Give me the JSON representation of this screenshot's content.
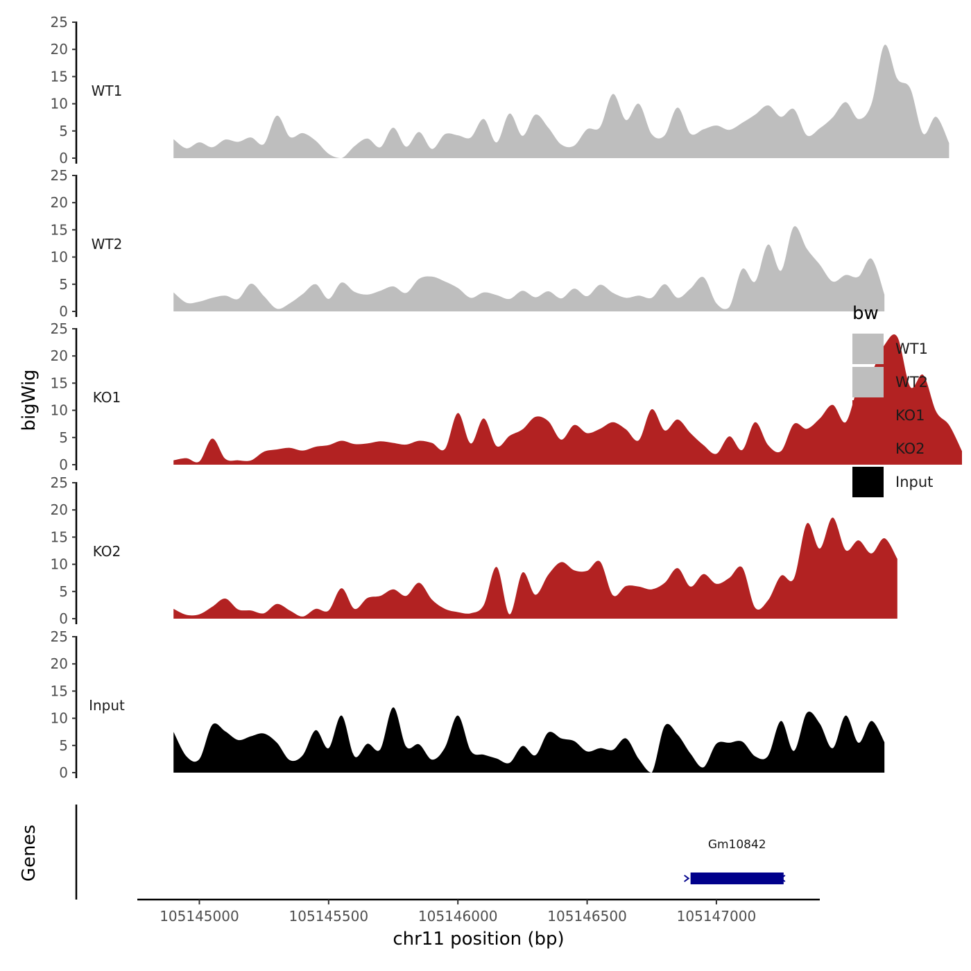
{
  "chart_data": {
    "type": "area",
    "title": "",
    "xlabel": "chr11 position (bp)",
    "ylabel": "bigWig",
    "genes_label": "Genes",
    "xlim": [
      105144760,
      105147400
    ],
    "ylim": [
      0,
      25
    ],
    "x_ticks": [
      105145000,
      105145500,
      105146000,
      105146500,
      105147000
    ],
    "y_ticks": [
      0,
      5,
      10,
      15,
      20,
      25
    ],
    "x_tick_labels": [
      "105145000",
      "105145500",
      "105146000",
      "105146500",
      "105147000"
    ],
    "y_tick_labels": [
      "0",
      "5",
      "10",
      "15",
      "20",
      "25"
    ],
    "x_start": 105144900,
    "x_step": 50,
    "legend": {
      "title": "bw",
      "position": "right",
      "entries": [
        {
          "label": "WT1",
          "color": "#bebebe"
        },
        {
          "label": "WT2",
          "color": "#bebebe"
        },
        {
          "label": "KO1",
          "color": "#b22222"
        },
        {
          "label": "KO2",
          "color": "#b22222"
        },
        {
          "label": "Input",
          "color": "#000000"
        }
      ]
    },
    "series": [
      {
        "name": "WT1",
        "color": "#bebebe",
        "values": [
          3.5,
          1.8,
          2.9,
          2.0,
          3.4,
          3.0,
          3.8,
          2.6,
          7.8,
          3.9,
          4.6,
          3.2,
          0.8,
          0.0,
          2.2,
          3.6,
          2.0,
          5.6,
          2.1,
          4.8,
          1.7,
          4.4,
          4.2,
          3.8,
          7.2,
          2.9,
          8.2,
          4.1,
          8.0,
          5.6,
          2.5,
          2.3,
          5.3,
          5.7,
          11.8,
          7.0,
          10.0,
          4.4,
          4.2,
          9.3,
          4.5,
          5.3,
          6.0,
          5.2,
          6.5,
          8.0,
          9.7,
          7.6,
          9.0,
          4.2,
          5.5,
          7.5,
          10.3,
          7.2,
          10.0,
          20.8,
          14.6,
          12.8,
          4.5,
          7.6,
          2.8
        ]
      },
      {
        "name": "WT2",
        "color": "#bebebe",
        "values": [
          3.5,
          1.6,
          1.8,
          2.5,
          2.9,
          2.3,
          5.1,
          2.8,
          0.5,
          1.5,
          3.2,
          5.0,
          2.3,
          5.3,
          3.6,
          3.1,
          3.8,
          4.6,
          3.4,
          6.0,
          6.4,
          5.5,
          4.3,
          2.5,
          3.5,
          3.0,
          2.3,
          3.8,
          2.6,
          3.7,
          2.4,
          4.2,
          2.8,
          4.9,
          3.4,
          2.5,
          2.9,
          2.5,
          5.0,
          2.5,
          4.2,
          6.3,
          1.5,
          0.8,
          7.8,
          5.5,
          12.3,
          7.5,
          15.6,
          11.5,
          8.6,
          5.5,
          6.7,
          6.4,
          9.7,
          3.1
        ]
      },
      {
        "name": "KO1",
        "color": "#b22222",
        "values": [
          0.8,
          1.2,
          0.6,
          4.8,
          1.1,
          0.8,
          0.8,
          2.4,
          2.8,
          3.1,
          2.6,
          3.3,
          3.6,
          4.4,
          3.8,
          3.9,
          4.3,
          4.0,
          3.7,
          4.4,
          4.0,
          2.9,
          9.5,
          3.9,
          8.5,
          3.4,
          5.3,
          6.5,
          8.8,
          8.0,
          4.6,
          7.3,
          5.8,
          6.6,
          7.8,
          6.5,
          4.5,
          10.2,
          6.3,
          8.3,
          5.8,
          3.6,
          2.0,
          5.2,
          2.7,
          7.8,
          3.6,
          2.5,
          7.5,
          6.6,
          8.5,
          11.0,
          7.8,
          14.5,
          17.0,
          22.0,
          23.5,
          14.3,
          16.5,
          9.8,
          7.3,
          2.5
        ]
      },
      {
        "name": "KO2",
        "color": "#b22222",
        "values": [
          1.8,
          0.7,
          0.8,
          2.2,
          3.7,
          1.7,
          1.5,
          1.0,
          2.7,
          1.5,
          0.4,
          1.8,
          1.5,
          5.6,
          1.8,
          3.8,
          4.2,
          5.4,
          4.2,
          6.6,
          3.5,
          1.8,
          1.2,
          1.0,
          2.5,
          9.5,
          0.8,
          8.5,
          4.4,
          8.1,
          10.4,
          8.9,
          8.8,
          10.5,
          4.3,
          6.0,
          5.9,
          5.4,
          6.6,
          9.3,
          5.9,
          8.2,
          6.4,
          7.5,
          9.4,
          2.0,
          3.4,
          7.9,
          7.4,
          17.5,
          12.9,
          18.6,
          12.6,
          14.4,
          12.0,
          14.8,
          11.0
        ]
      },
      {
        "name": "Input",
        "color": "#000000",
        "values": [
          7.5,
          3.0,
          2.5,
          8.8,
          7.6,
          6.0,
          6.7,
          7.2,
          5.5,
          2.3,
          3.2,
          7.8,
          4.5,
          10.5,
          3.0,
          5.3,
          4.3,
          12.0,
          4.8,
          5.2,
          2.4,
          4.6,
          10.5,
          4.0,
          3.3,
          2.6,
          1.8,
          4.9,
          3.2,
          7.4,
          6.3,
          5.8,
          3.9,
          4.5,
          4.2,
          6.3,
          2.5,
          0.0,
          8.6,
          7.0,
          3.5,
          1.0,
          5.3,
          5.5,
          5.7,
          3.0,
          3.1,
          9.5,
          4.0,
          11.0,
          9.0,
          4.5,
          10.5,
          5.5,
          9.5,
          5.6
        ]
      }
    ],
    "genes": [
      {
        "name": "Gm10842",
        "start": 105146900,
        "end": 105147260,
        "strand": "-",
        "color": "#00008b"
      }
    ]
  }
}
